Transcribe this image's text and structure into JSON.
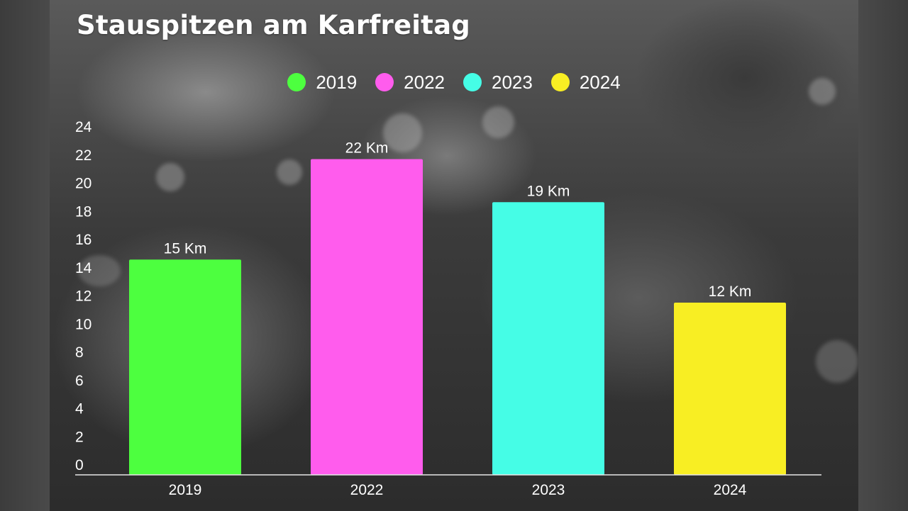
{
  "chart_data": {
    "type": "bar",
    "title": "Stauspitzen am Karfreitag",
    "categories": [
      "2019",
      "2022",
      "2023",
      "2024"
    ],
    "values": [
      15,
      22,
      19,
      12
    ],
    "data_labels": [
      "15 Km",
      "22 Km",
      "19 Km",
      "12 Km"
    ],
    "colors": [
      "#4dff3f",
      "#ff5ced",
      "#45fde6",
      "#f8ee23"
    ],
    "legend": [
      "2019",
      "2022",
      "2023",
      "2024"
    ],
    "legend_position": "top-center",
    "y_ticks": [
      "0",
      "2",
      "4",
      "6",
      "8",
      "10",
      "12",
      "14",
      "16",
      "18",
      "20",
      "22",
      "24"
    ],
    "ylim": [
      0,
      24
    ],
    "grid": false,
    "xlabel": "",
    "ylabel": ""
  }
}
